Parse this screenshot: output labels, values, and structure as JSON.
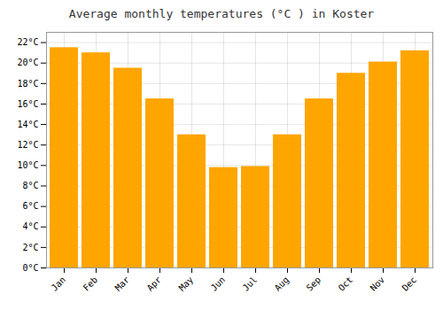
{
  "chart_data": {
    "type": "bar",
    "title": "Average monthly temperatures (°C ) in Koster",
    "categories": [
      "Jan",
      "Feb",
      "Mar",
      "Apr",
      "May",
      "Jun",
      "Jul",
      "Aug",
      "Sep",
      "Oct",
      "Nov",
      "Dec"
    ],
    "values": [
      21.5,
      21.0,
      19.5,
      16.5,
      13.0,
      9.8,
      9.9,
      13.0,
      16.5,
      19.0,
      20.1,
      21.2
    ],
    "color": "#FFA500",
    "ylim": [
      0,
      23
    ],
    "yticks": [
      {
        "value": 0,
        "label": "0°C"
      },
      {
        "value": 2,
        "label": "2°C"
      },
      {
        "value": 4,
        "label": "4°C"
      },
      {
        "value": 6,
        "label": "6°C"
      },
      {
        "value": 8,
        "label": "8°C"
      },
      {
        "value": 10,
        "label": "10°C"
      },
      {
        "value": 12,
        "label": "12°C"
      },
      {
        "value": 14,
        "label": "14°C"
      },
      {
        "value": 16,
        "label": "16°C"
      },
      {
        "value": 18,
        "label": "18°C"
      },
      {
        "value": 20,
        "label": "20°C"
      },
      {
        "value": 22,
        "label": "22°C"
      }
    ],
    "grid": true
  }
}
